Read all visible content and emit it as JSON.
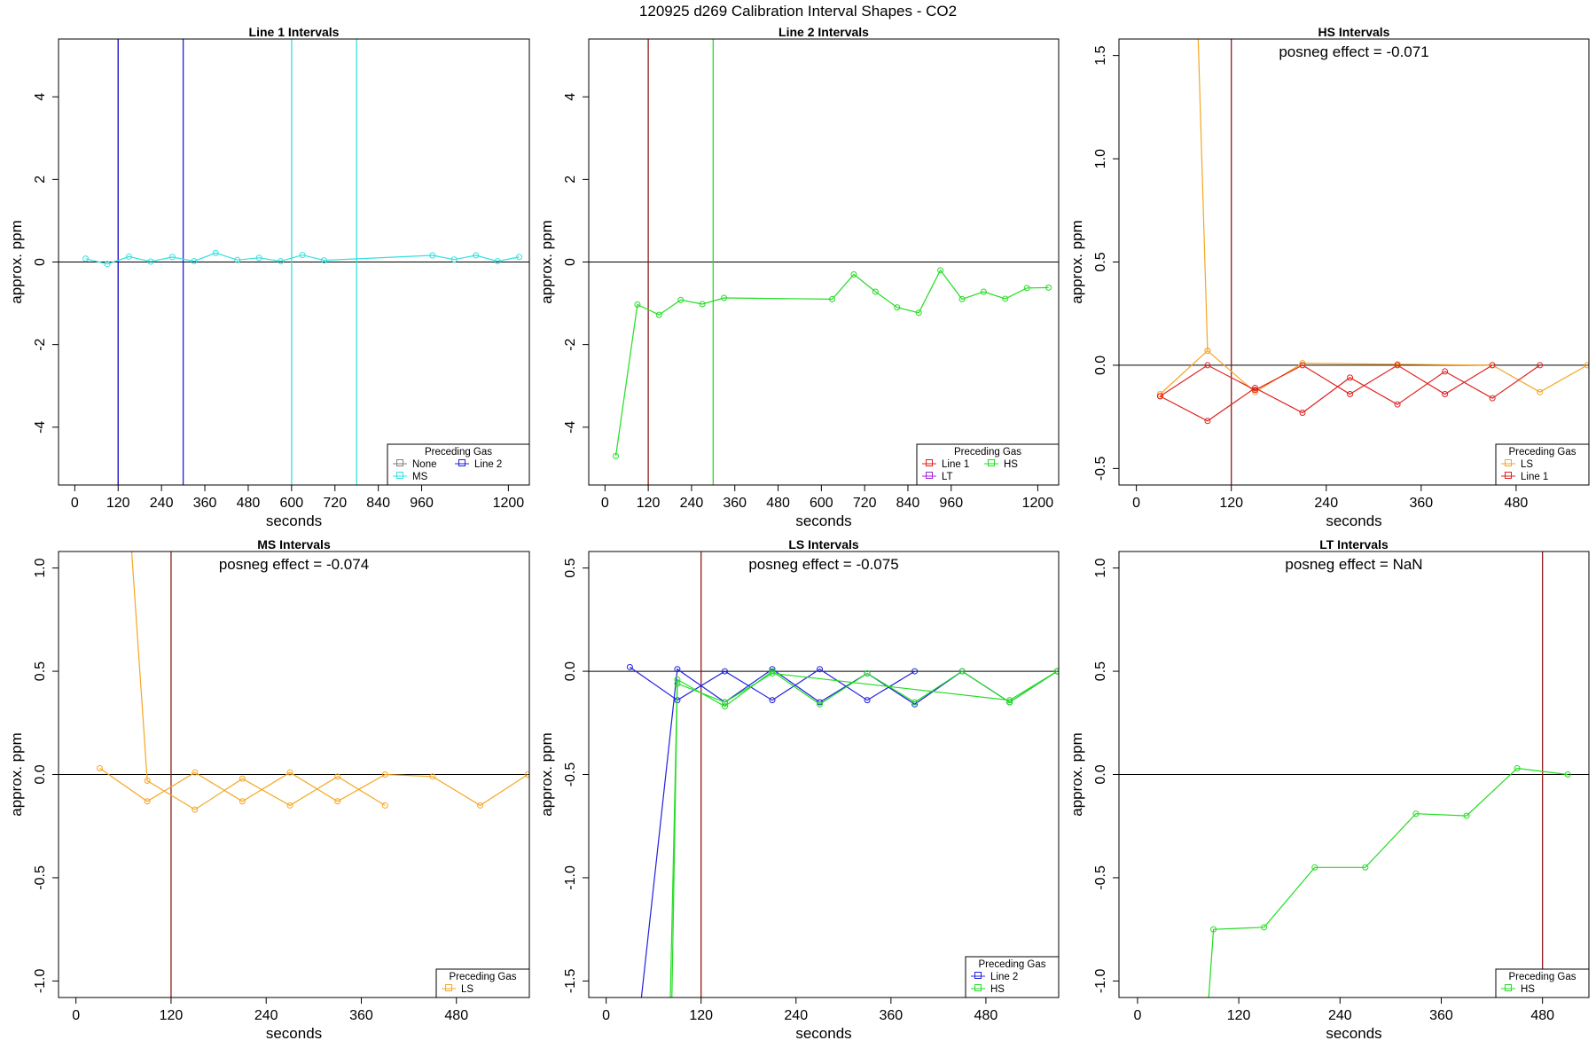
{
  "page_title": "120925   d269   Calibration Interval Shapes - CO2",
  "colors": {
    "None": "#808080",
    "Line 2": "#2020e0",
    "MS": "#33e0e0",
    "Line 1": "#e02020",
    "HS": "#22dd22",
    "LT": "#a020e0",
    "LS": "#f5a623",
    "vline_brown": "#8b1a1a"
  },
  "chart_data": [
    {
      "type": "line",
      "title": "Line 1 Intervals",
      "xlabel": "seconds",
      "ylabel": "approx. ppm",
      "xlim": [
        -45,
        1258
      ],
      "ylim": [
        -5.4,
        5.4
      ],
      "xticks": [
        0,
        120,
        240,
        360,
        480,
        600,
        720,
        840,
        960,
        1200
      ],
      "yticks": [
        -4,
        -2,
        0,
        2,
        4
      ],
      "ytick_labels": [
        "-4",
        "-2",
        "0",
        "2",
        "4"
      ],
      "hline": 0,
      "vlines": [
        {
          "x": 120,
          "color": "vline_brown"
        },
        {
          "x": 120,
          "color": "Line 2"
        },
        {
          "x": 300,
          "color": "Line 2"
        },
        {
          "x": 600,
          "color": "MS"
        },
        {
          "x": 780,
          "color": "MS"
        }
      ],
      "series": [
        {
          "name": "MS",
          "color": "MS",
          "x": [
            30,
            90,
            150,
            210,
            270,
            330,
            390,
            450,
            510,
            570,
            630,
            690,
            990,
            1050,
            1110,
            1170,
            1230
          ],
          "y": [
            0.08,
            -0.05,
            0.13,
            0.01,
            0.12,
            0.02,
            0.22,
            0.05,
            0.1,
            0.02,
            0.17,
            0.04,
            0.16,
            0.06,
            0.16,
            0.02,
            0.12
          ]
        }
      ],
      "legend": {
        "title": "Preceding Gas",
        "position": "bottom-right",
        "entries": [
          {
            "label": "None",
            "color": "None"
          },
          {
            "label": "MS",
            "color": "MS"
          },
          {
            "label": "Line 2",
            "color": "Line 2"
          }
        ]
      }
    },
    {
      "type": "line",
      "title": "Line 2 Intervals",
      "xlabel": "seconds",
      "ylabel": "approx. ppm",
      "xlim": [
        -45,
        1258
      ],
      "ylim": [
        -5.4,
        5.4
      ],
      "xticks": [
        0,
        120,
        240,
        360,
        480,
        600,
        720,
        840,
        960,
        1200
      ],
      "yticks": [
        -4,
        -2,
        0,
        2,
        4
      ],
      "ytick_labels": [
        "-4",
        "-2",
        "0",
        "2",
        "4"
      ],
      "hline": 0,
      "vlines": [
        {
          "x": 120,
          "color": "vline_brown"
        },
        {
          "x": 300,
          "color": "HS"
        }
      ],
      "series": [
        {
          "name": "HS",
          "color": "HS",
          "x": [
            30,
            90,
            150,
            210,
            270,
            330,
            630,
            690,
            750,
            810,
            870,
            930,
            990,
            1050,
            1110,
            1170,
            1230
          ],
          "y": [
            -4.7,
            -1.03,
            -1.28,
            -0.92,
            -1.02,
            -0.87,
            -0.9,
            -0.3,
            -0.72,
            -1.1,
            -1.23,
            -0.2,
            -0.9,
            -0.72,
            -0.89,
            -0.63,
            -0.62
          ]
        }
      ],
      "legend": {
        "title": "Preceding Gas",
        "position": "bottom-right",
        "entries": [
          {
            "label": "Line 1",
            "color": "Line 1"
          },
          {
            "label": "LT",
            "color": "LT"
          },
          {
            "label": "HS",
            "color": "HS"
          }
        ]
      }
    },
    {
      "type": "line",
      "title": "HS Intervals",
      "xlabel": "seconds",
      "ylabel": "approx. ppm",
      "xlim": [
        -22,
        572
      ],
      "ylim": [
        -0.58,
        1.58
      ],
      "xticks": [
        0,
        120,
        240,
        360,
        480
      ],
      "yticks": [
        -0.5,
        0,
        0.5,
        1,
        1.5
      ],
      "ytick_labels": [
        "-0.5",
        "0.0",
        "0.5",
        "1.0",
        "1.5"
      ],
      "hline": 0,
      "vlines": [
        {
          "x": 120,
          "color": "vline_brown"
        }
      ],
      "annotation": "posneg effect = -0.071",
      "series": [
        {
          "name": "LS",
          "color": "LS",
          "x": [
            30,
            90,
            150,
            210,
            330,
            450,
            510,
            570
          ],
          "y": [
            -0.14,
            0.07,
            -0.13,
            0.01,
            0.005,
            0.0,
            -0.13,
            0.0
          ]
        },
        {
          "name": "LS",
          "color": "LS",
          "x": [
            78,
            90
          ],
          "y": [
            1.6,
            0.07
          ]
        },
        {
          "name": "Line 1",
          "color": "Line 1",
          "x": [
            30,
            90,
            150,
            210,
            270,
            330,
            390,
            450,
            510
          ],
          "y": [
            -0.15,
            -0.27,
            -0.11,
            -0.23,
            -0.06,
            -0.19,
            -0.03,
            -0.16,
            0.0
          ]
        },
        {
          "name": "Line 1",
          "color": "Line 1",
          "x": [
            30,
            90,
            150,
            210,
            270,
            330,
            390,
            450
          ],
          "y": [
            -0.15,
            0.0,
            -0.12,
            0.0,
            -0.14,
            0.0,
            -0.14,
            0.0
          ]
        }
      ],
      "legend": {
        "title": "Preceding Gas",
        "position": "bottom-right",
        "entries": [
          {
            "label": "LS",
            "color": "LS"
          },
          {
            "label": "Line 1",
            "color": "Line 1"
          }
        ]
      }
    },
    {
      "type": "line",
      "title": "MS Intervals",
      "xlabel": "seconds",
      "ylabel": "approx. ppm",
      "xlim": [
        -22,
        572
      ],
      "ylim": [
        -1.08,
        1.08
      ],
      "xticks": [
        0,
        120,
        240,
        360,
        480
      ],
      "yticks": [
        -1,
        -0.5,
        0,
        0.5,
        1
      ],
      "ytick_labels": [
        "-1.0",
        "-0.5",
        "0.0",
        "0.5",
        "1.0"
      ],
      "hline": 0,
      "vlines": [
        {
          "x": 120,
          "color": "vline_brown"
        }
      ],
      "annotation": "posneg effect = -0.074",
      "series": [
        {
          "name": "LS",
          "color": "LS",
          "x": [
            30,
            90,
            150,
            210,
            270,
            330,
            390,
            450,
            510,
            570
          ],
          "y": [
            0.03,
            -0.13,
            0.01,
            -0.13,
            0.01,
            -0.13,
            0.0,
            -0.01,
            -0.15,
            0.0
          ]
        },
        {
          "name": "LS",
          "color": "LS",
          "x": [
            70,
            90,
            150,
            210,
            270,
            330,
            390
          ],
          "y": [
            1.1,
            -0.03,
            -0.17,
            -0.02,
            -0.15,
            -0.01,
            -0.15
          ]
        }
      ],
      "legend": {
        "title": "Preceding Gas",
        "position": "bottom-right",
        "entries": [
          {
            "label": "LS",
            "color": "LS"
          }
        ]
      }
    },
    {
      "type": "line",
      "title": "LS Intervals",
      "xlabel": "seconds",
      "ylabel": "approx. ppm",
      "xlim": [
        -22,
        572
      ],
      "ylim": [
        -1.58,
        0.58
      ],
      "xticks": [
        0,
        120,
        240,
        360,
        480
      ],
      "yticks": [
        -1.5,
        -1,
        -0.5,
        0,
        0.5
      ],
      "ytick_labels": [
        "-1.5",
        "-1.0",
        "-0.5",
        "0.0",
        "0.5"
      ],
      "hline": 0,
      "vlines": [
        {
          "x": 120,
          "color": "vline_brown"
        }
      ],
      "annotation": "posneg effect = -0.075",
      "series": [
        {
          "name": "Line 2",
          "color": "Line 2",
          "x": [
            30,
            90,
            150,
            210,
            270,
            330,
            390
          ],
          "y": [
            0.02,
            -0.14,
            0.0,
            -0.14,
            0.01,
            -0.14,
            0.0
          ]
        },
        {
          "name": "Line 2",
          "color": "Line 2",
          "x": [
            44,
            90,
            150,
            210,
            270,
            330,
            390,
            450,
            510,
            570
          ],
          "y": [
            -1.6,
            0.01,
            -0.15,
            0.01,
            -0.15,
            -0.01,
            -0.16,
            0.0,
            -0.15,
            0.0
          ]
        },
        {
          "name": "HS",
          "color": "HS",
          "x": [
            81,
            90,
            150,
            210,
            270,
            330,
            390,
            450,
            510,
            570
          ],
          "y": [
            -1.6,
            -0.04,
            -0.17,
            0.0,
            -0.16,
            -0.01,
            -0.15,
            0.0,
            -0.15,
            0.0
          ]
        },
        {
          "name": "HS",
          "color": "HS",
          "x": [
            83,
            90,
            150,
            210,
            510,
            570
          ],
          "y": [
            -1.6,
            -0.06,
            -0.15,
            -0.01,
            -0.14,
            0.0
          ]
        }
      ],
      "legend": {
        "title": "Preceding Gas",
        "position": "bottom-right",
        "entries": [
          {
            "label": "Line 2",
            "color": "Line 2"
          },
          {
            "label": "HS",
            "color": "HS"
          }
        ]
      }
    },
    {
      "type": "line",
      "title": "LT Intervals",
      "xlabel": "seconds",
      "ylabel": "approx. ppm",
      "xlim": [
        -22,
        535
      ],
      "ylim": [
        -1.08,
        1.08
      ],
      "xticks": [
        0,
        120,
        240,
        360,
        480
      ],
      "yticks": [
        -1,
        -0.5,
        0,
        0.5,
        1
      ],
      "ytick_labels": [
        "-1.0",
        "-0.5",
        "0.0",
        "0.5",
        "1.0"
      ],
      "hline": 0,
      "vlines": [
        {
          "x": 480,
          "color": "vline_brown"
        }
      ],
      "annotation": "posneg effect = NaN",
      "series": [
        {
          "name": "HS",
          "color": "HS",
          "x": [
            84,
            90,
            150,
            210,
            270,
            330,
            390,
            450,
            510
          ],
          "y": [
            -1.1,
            -0.75,
            -0.74,
            -0.45,
            -0.45,
            -0.19,
            -0.2,
            0.03,
            0.0
          ]
        }
      ],
      "legend": {
        "title": "Preceding Gas",
        "position": "bottom-right",
        "entries": [
          {
            "label": "HS",
            "color": "HS"
          }
        ]
      }
    }
  ]
}
